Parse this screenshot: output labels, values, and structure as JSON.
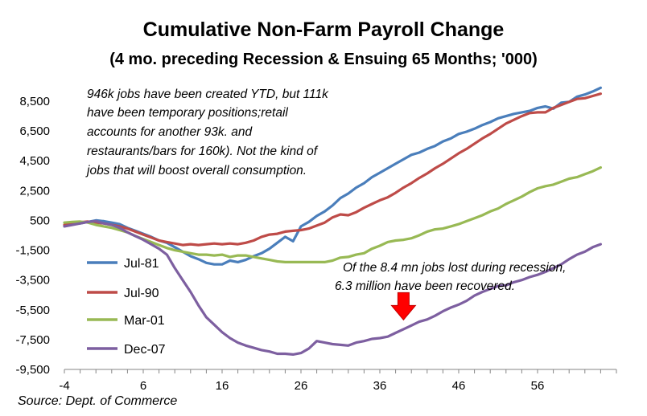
{
  "chart_data": {
    "type": "line",
    "title": "Cumulative Non-Farm Payroll Change",
    "subtitle": "(4 mo. preceding Recession & Ensuing 65 Months; '000)",
    "xlabel": "",
    "ylabel": "",
    "xlim": [
      -4,
      66
    ],
    "ylim": [
      -9500,
      9500
    ],
    "x_ticks": [
      -4,
      6,
      16,
      26,
      36,
      46,
      56
    ],
    "y_ticks": [
      -9500,
      -7500,
      -5500,
      -3500,
      -1500,
      500,
      2500,
      4500,
      6500,
      8500
    ],
    "y_tick_labels": [
      "-9,500",
      "-7,500",
      "-5,500",
      "-3,500",
      "-1,500",
      "500",
      "2,500",
      "4,500",
      "6,500",
      "8,500"
    ],
    "grid": false,
    "legend_position": "left-middle",
    "series": [
      {
        "name": "Jul-81",
        "color": "#4a7ebb",
        "points": [
          [
            -4,
            150
          ],
          [
            -3,
            250
          ],
          [
            -2,
            300
          ],
          [
            -1,
            400
          ],
          [
            0,
            500
          ],
          [
            1,
            450
          ],
          [
            2,
            350
          ],
          [
            3,
            250
          ],
          [
            4,
            0
          ],
          [
            5,
            -200
          ],
          [
            6,
            -400
          ],
          [
            7,
            -600
          ],
          [
            8,
            -850
          ],
          [
            9,
            -1000
          ],
          [
            10,
            -1300
          ],
          [
            11,
            -1600
          ],
          [
            12,
            -1900
          ],
          [
            13,
            -2100
          ],
          [
            14,
            -2350
          ],
          [
            15,
            -2450
          ],
          [
            16,
            -2450
          ],
          [
            17,
            -2200
          ],
          [
            18,
            -2300
          ],
          [
            19,
            -2150
          ],
          [
            20,
            -1900
          ],
          [
            21,
            -1700
          ],
          [
            22,
            -1400
          ],
          [
            23,
            -1000
          ],
          [
            24,
            -600
          ],
          [
            25,
            -900
          ],
          [
            26,
            100
          ],
          [
            27,
            400
          ],
          [
            28,
            800
          ],
          [
            29,
            1100
          ],
          [
            30,
            1500
          ],
          [
            31,
            2000
          ],
          [
            32,
            2300
          ],
          [
            33,
            2700
          ],
          [
            34,
            3000
          ],
          [
            35,
            3400
          ],
          [
            36,
            3700
          ],
          [
            37,
            4000
          ],
          [
            38,
            4300
          ],
          [
            39,
            4600
          ],
          [
            40,
            4900
          ],
          [
            41,
            5050
          ],
          [
            42,
            5300
          ],
          [
            43,
            5500
          ],
          [
            44,
            5800
          ],
          [
            45,
            6000
          ],
          [
            46,
            6300
          ],
          [
            47,
            6450
          ],
          [
            48,
            6650
          ],
          [
            49,
            6900
          ],
          [
            50,
            7100
          ],
          [
            51,
            7350
          ],
          [
            52,
            7500
          ],
          [
            53,
            7650
          ],
          [
            54,
            7750
          ],
          [
            55,
            7850
          ],
          [
            56,
            8050
          ],
          [
            57,
            8150
          ],
          [
            58,
            8000
          ],
          [
            59,
            8400
          ],
          [
            60,
            8450
          ],
          [
            61,
            8800
          ],
          [
            62,
            8950
          ],
          [
            63,
            9150
          ],
          [
            64,
            9400
          ]
        ]
      },
      {
        "name": "Jul-90",
        "color": "#be4b48",
        "points": [
          [
            -4,
            200
          ],
          [
            -3,
            300
          ],
          [
            -2,
            380
          ],
          [
            -1,
            420
          ],
          [
            0,
            350
          ],
          [
            1,
            300
          ],
          [
            2,
            200
          ],
          [
            3,
            100
          ],
          [
            4,
            -50
          ],
          [
            5,
            -250
          ],
          [
            6,
            -450
          ],
          [
            7,
            -650
          ],
          [
            8,
            -850
          ],
          [
            9,
            -950
          ],
          [
            10,
            -1050
          ],
          [
            11,
            -1150
          ],
          [
            12,
            -1100
          ],
          [
            13,
            -1150
          ],
          [
            14,
            -1100
          ],
          [
            15,
            -1050
          ],
          [
            16,
            -1100
          ],
          [
            17,
            -1050
          ],
          [
            18,
            -1100
          ],
          [
            19,
            -1000
          ],
          [
            20,
            -850
          ],
          [
            21,
            -600
          ],
          [
            22,
            -450
          ],
          [
            23,
            -400
          ],
          [
            24,
            -250
          ],
          [
            25,
            -200
          ],
          [
            26,
            -150
          ],
          [
            27,
            -50
          ],
          [
            28,
            150
          ],
          [
            29,
            350
          ],
          [
            30,
            700
          ],
          [
            31,
            900
          ],
          [
            32,
            850
          ],
          [
            33,
            1050
          ],
          [
            34,
            1350
          ],
          [
            35,
            1600
          ],
          [
            36,
            1850
          ],
          [
            37,
            2050
          ],
          [
            38,
            2350
          ],
          [
            39,
            2700
          ],
          [
            40,
            3000
          ],
          [
            41,
            3350
          ],
          [
            42,
            3650
          ],
          [
            43,
            4000
          ],
          [
            44,
            4300
          ],
          [
            45,
            4650
          ],
          [
            46,
            5000
          ],
          [
            47,
            5300
          ],
          [
            48,
            5650
          ],
          [
            49,
            6000
          ],
          [
            50,
            6300
          ],
          [
            51,
            6650
          ],
          [
            52,
            7000
          ],
          [
            53,
            7250
          ],
          [
            54,
            7500
          ],
          [
            55,
            7700
          ],
          [
            56,
            7750
          ],
          [
            57,
            7750
          ],
          [
            58,
            8050
          ],
          [
            59,
            8250
          ],
          [
            60,
            8450
          ],
          [
            61,
            8650
          ],
          [
            62,
            8700
          ],
          [
            63,
            8850
          ],
          [
            64,
            9000
          ]
        ]
      },
      {
        "name": "Mar-01",
        "color": "#98b954",
        "points": [
          [
            -4,
            350
          ],
          [
            -3,
            400
          ],
          [
            -2,
            420
          ],
          [
            -1,
            350
          ],
          [
            0,
            200
          ],
          [
            1,
            100
          ],
          [
            2,
            0
          ],
          [
            3,
            -150
          ],
          [
            4,
            -300
          ],
          [
            5,
            -550
          ],
          [
            6,
            -750
          ],
          [
            7,
            -950
          ],
          [
            8,
            -1150
          ],
          [
            9,
            -1350
          ],
          [
            10,
            -1500
          ],
          [
            11,
            -1600
          ],
          [
            12,
            -1700
          ],
          [
            13,
            -1800
          ],
          [
            14,
            -1800
          ],
          [
            15,
            -1850
          ],
          [
            16,
            -1800
          ],
          [
            17,
            -1950
          ],
          [
            18,
            -1850
          ],
          [
            19,
            -1850
          ],
          [
            20,
            -1950
          ],
          [
            21,
            -2050
          ],
          [
            22,
            -2150
          ],
          [
            23,
            -2250
          ],
          [
            24,
            -2300
          ],
          [
            25,
            -2300
          ],
          [
            26,
            -2300
          ],
          [
            27,
            -2300
          ],
          [
            28,
            -2300
          ],
          [
            29,
            -2300
          ],
          [
            30,
            -2200
          ],
          [
            31,
            -2000
          ],
          [
            32,
            -1950
          ],
          [
            33,
            -1800
          ],
          [
            34,
            -1700
          ],
          [
            35,
            -1400
          ],
          [
            36,
            -1200
          ],
          [
            37,
            -950
          ],
          [
            38,
            -850
          ],
          [
            39,
            -800
          ],
          [
            40,
            -700
          ],
          [
            41,
            -500
          ],
          [
            42,
            -250
          ],
          [
            43,
            -100
          ],
          [
            44,
            -50
          ],
          [
            45,
            100
          ],
          [
            46,
            250
          ],
          [
            47,
            450
          ],
          [
            48,
            650
          ],
          [
            49,
            850
          ],
          [
            50,
            1100
          ],
          [
            51,
            1300
          ],
          [
            52,
            1600
          ],
          [
            53,
            1850
          ],
          [
            54,
            2100
          ],
          [
            55,
            2400
          ],
          [
            56,
            2650
          ],
          [
            57,
            2800
          ],
          [
            58,
            2900
          ],
          [
            59,
            3100
          ],
          [
            60,
            3300
          ],
          [
            61,
            3400
          ],
          [
            62,
            3600
          ],
          [
            63,
            3800
          ],
          [
            64,
            4050
          ]
        ]
      },
      {
        "name": "Dec-07",
        "color": "#7d5fa0",
        "points": [
          [
            -4,
            100
          ],
          [
            -3,
            200
          ],
          [
            -2,
            300
          ],
          [
            -1,
            400
          ],
          [
            0,
            450
          ],
          [
            1,
            300
          ],
          [
            2,
            200
          ],
          [
            3,
            0
          ],
          [
            4,
            -300
          ],
          [
            5,
            -550
          ],
          [
            6,
            -800
          ],
          [
            7,
            -1100
          ],
          [
            8,
            -1400
          ],
          [
            9,
            -1800
          ],
          [
            10,
            -2700
          ],
          [
            11,
            -3500
          ],
          [
            12,
            -4300
          ],
          [
            13,
            -5200
          ],
          [
            14,
            -6000
          ],
          [
            15,
            -6500
          ],
          [
            16,
            -7000
          ],
          [
            17,
            -7400
          ],
          [
            18,
            -7700
          ],
          [
            19,
            -7900
          ],
          [
            20,
            -8050
          ],
          [
            21,
            -8200
          ],
          [
            22,
            -8300
          ],
          [
            23,
            -8450
          ],
          [
            24,
            -8450
          ],
          [
            25,
            -8500
          ],
          [
            26,
            -8400
          ],
          [
            27,
            -8100
          ],
          [
            28,
            -7600
          ],
          [
            29,
            -7700
          ],
          [
            30,
            -7800
          ],
          [
            31,
            -7850
          ],
          [
            32,
            -7900
          ],
          [
            33,
            -7700
          ],
          [
            34,
            -7600
          ],
          [
            35,
            -7450
          ],
          [
            36,
            -7400
          ],
          [
            37,
            -7300
          ],
          [
            38,
            -7050
          ],
          [
            39,
            -6800
          ],
          [
            40,
            -6550
          ],
          [
            41,
            -6300
          ],
          [
            42,
            -6150
          ],
          [
            43,
            -5900
          ],
          [
            44,
            -5600
          ],
          [
            45,
            -5350
          ],
          [
            46,
            -5150
          ],
          [
            47,
            -4900
          ],
          [
            48,
            -4550
          ],
          [
            49,
            -4300
          ],
          [
            50,
            -4100
          ],
          [
            51,
            -3900
          ],
          [
            52,
            -3850
          ],
          [
            53,
            -3650
          ],
          [
            54,
            -3500
          ],
          [
            55,
            -3300
          ],
          [
            56,
            -3150
          ],
          [
            57,
            -2950
          ],
          [
            58,
            -2700
          ],
          [
            59,
            -2450
          ],
          [
            60,
            -2100
          ],
          [
            61,
            -1800
          ],
          [
            62,
            -1600
          ],
          [
            63,
            -1300
          ],
          [
            64,
            -1100
          ]
        ]
      }
    ],
    "annotations": {
      "note_lines": [
        "946k jobs have been created YTD, but 111k",
        "have been temporary positions;retail",
        "accounts for another 93k. and",
        "restaurants/bars for 160k). Not the kind of",
        "jobs that will boost overall consumption."
      ],
      "callout_lines": [
        "Of the 8.4 mn jobs lost during recession,",
        "6.3 million have been recovered."
      ],
      "arrow_color": "#ff0000",
      "arrow_x": 39,
      "arrow_y": -6500
    },
    "source": "Source: Dept. of Commerce"
  }
}
